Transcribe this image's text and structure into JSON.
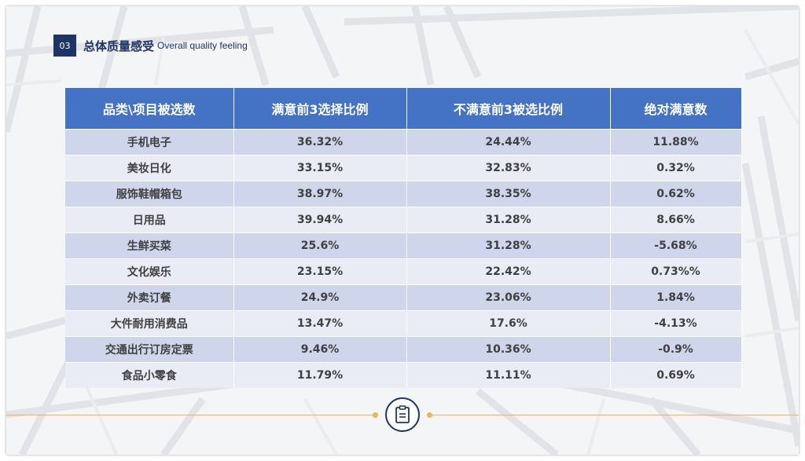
{
  "header": {
    "number": "03",
    "title_cn": "总体质量感受",
    "title_en": "Overall quality feeling"
  },
  "table": {
    "headers": [
      "品类\\项目被选数",
      "满意前3选择比例",
      "不满意前3被选比例",
      "绝对满意数"
    ],
    "rows": [
      [
        "手机电子",
        "36.32%",
        "24.44%",
        "11.88%"
      ],
      [
        "美妆日化",
        "33.15%",
        "32.83%",
        "0.32%"
      ],
      [
        "服饰鞋帽箱包",
        "38.97%",
        "38.35%",
        "0.62%"
      ],
      [
        "日用品",
        "39.94%",
        "31.28%",
        "8.66%"
      ],
      [
        "生鲜买菜",
        "25.6%",
        "31.28%",
        "-5.68%"
      ],
      [
        "文化娱乐",
        "23.15%",
        "22.42%",
        "0.73%%"
      ],
      [
        "外卖订餐",
        "24.9%",
        "23.06%",
        "1.84%"
      ],
      [
        "大件耐用消费品",
        "13.47%",
        "17.6%",
        "-4.13%"
      ],
      [
        "交通出行订房定票",
        "9.46%",
        "10.36%",
        "-0.9%"
      ],
      [
        "食品小零食",
        "11.79%",
        "11.11%",
        "0.69%"
      ]
    ]
  },
  "footer": {
    "icon": "clipboard-icon"
  },
  "colors": {
    "navy": "#1f3464",
    "header_blue": "#4472c4",
    "row_dark": "#cfd5ea",
    "row_light": "#e9ebf5",
    "accent_orange": "#f0b44c"
  }
}
